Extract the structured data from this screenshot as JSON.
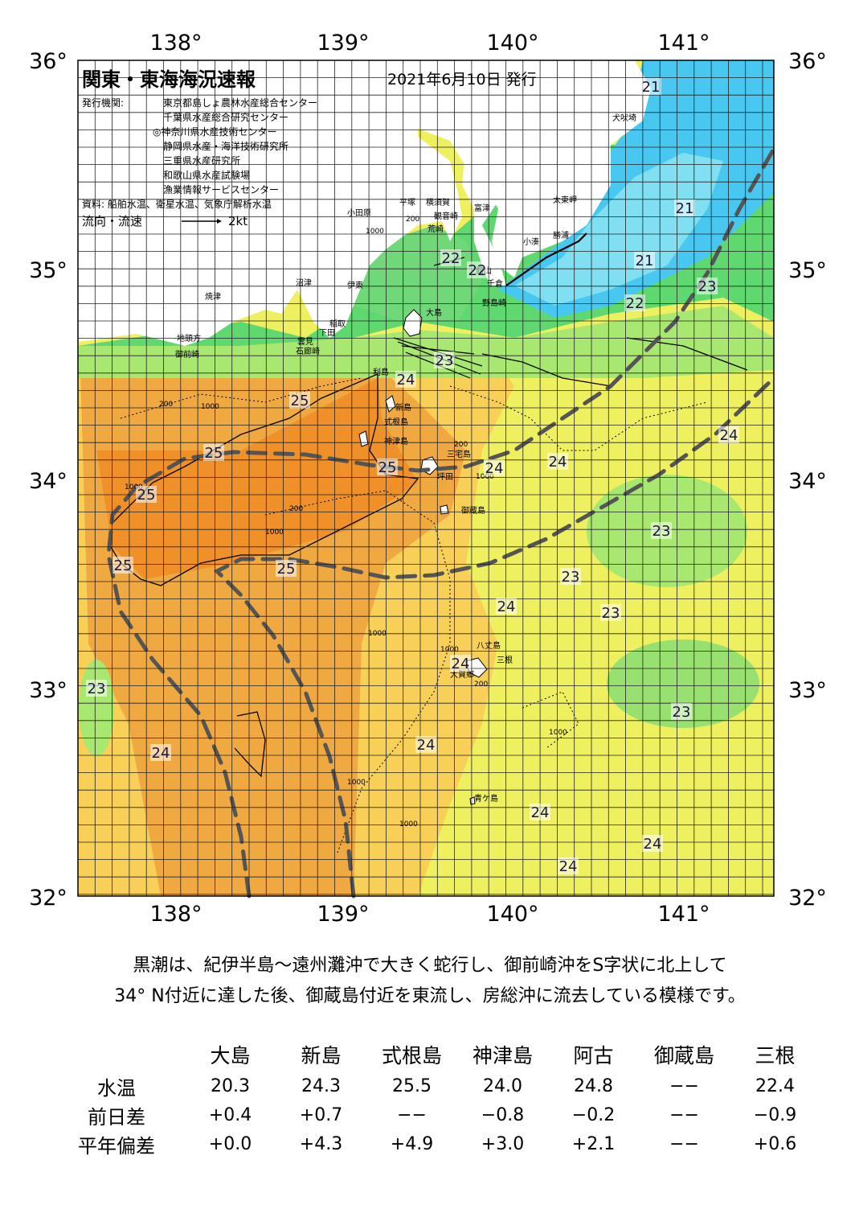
{
  "map": {
    "title": "関東・東海海況速報",
    "date": "2021年6月10日 発行",
    "issuer_label": "発行機関:",
    "issuers": [
      "東京都島しょ農林水産総合センター",
      "千葉県水産総合研究センター",
      "◎神奈川県水産技術センター",
      "静岡県水産・海洋技術研究所",
      "三重県水産研究所",
      "和歌山県水産試験場",
      "漁業情報サービスセンター"
    ],
    "sources": "資料: 船舶水温、衛星水温、気象庁解析水温",
    "current_legend": "流向・流速",
    "current_scale": "2kt",
    "lon_ticks": [
      "138°",
      "139°",
      "140°",
      "141°"
    ],
    "lat_ticks": [
      "36°",
      "35°",
      "34°",
      "33°",
      "32°"
    ],
    "colors": {
      "t20": "#80dff0",
      "t21": "#48c8f0",
      "t22": "#60e080",
      "t23": "#a8e870",
      "t24a": "#e8f060",
      "t24b": "#f8d058",
      "t245": "#f0b040",
      "t25": "#f09a30",
      "land": "#ffffff",
      "kuroshio": "#555555",
      "grid": "#222222"
    },
    "place_names": [
      "犬吠埼",
      "太東岬",
      "勝浦",
      "小湊",
      "富津",
      "横須賀",
      "観音崎",
      "荒崎",
      "平塚",
      "小田原",
      "館山",
      "千倉",
      "野島崎",
      "沼津",
      "伊東",
      "焼津",
      "稲取",
      "下田",
      "石廊崎",
      "雲見",
      "地頭方",
      "御前崎",
      "大島",
      "利島",
      "新島",
      "式根島",
      "神津島",
      "三宅島",
      "坪田",
      "御蔵島",
      "八丈島",
      "大賀郷",
      "三根",
      "青ケ島"
    ],
    "temp_labels": [
      "21",
      "21",
      "21",
      "22",
      "22",
      "23",
      "24",
      "25",
      "25",
      "24",
      "24",
      "25",
      "25",
      "24",
      "23",
      "23",
      "25",
      "25",
      "23",
      "24",
      "23",
      "24",
      "23",
      "24",
      "24",
      "24",
      "24",
      "24",
      "22",
      "23"
    ],
    "depth_labels": [
      "1000",
      "200",
      "1000",
      "1000",
      "200",
      "200",
      "1000",
      "200",
      "1000",
      "1000",
      "1000",
      "1000",
      "1000",
      "1000",
      "200"
    ]
  },
  "summary": {
    "line1": "黒潮は、紀伊半島～遠州灘沖で大きく蛇行し、御前崎沖をS字状に北上して",
    "line2": "34° N付近に達した後、御蔵島付近を東流し、房総沖に流去している模様です。"
  },
  "table": {
    "headers": [
      "大島",
      "新島",
      "式根島",
      "神津島",
      "阿古",
      "御蔵島",
      "三根"
    ],
    "rows": [
      {
        "label": "水温",
        "values": [
          "20.3",
          "24.3",
          "25.5",
          "24.0",
          "24.8",
          "−−",
          "22.4"
        ]
      },
      {
        "label": "前日差",
        "values": [
          "+0.4",
          "+0.7",
          "−−",
          "−0.8",
          "−0.2",
          "−−",
          "−0.9"
        ]
      },
      {
        "label": "平年偏差",
        "values": [
          "+0.0",
          "+4.3",
          "+4.9",
          "+3.0",
          "+2.1",
          "−−",
          "+0.6"
        ]
      }
    ]
  }
}
